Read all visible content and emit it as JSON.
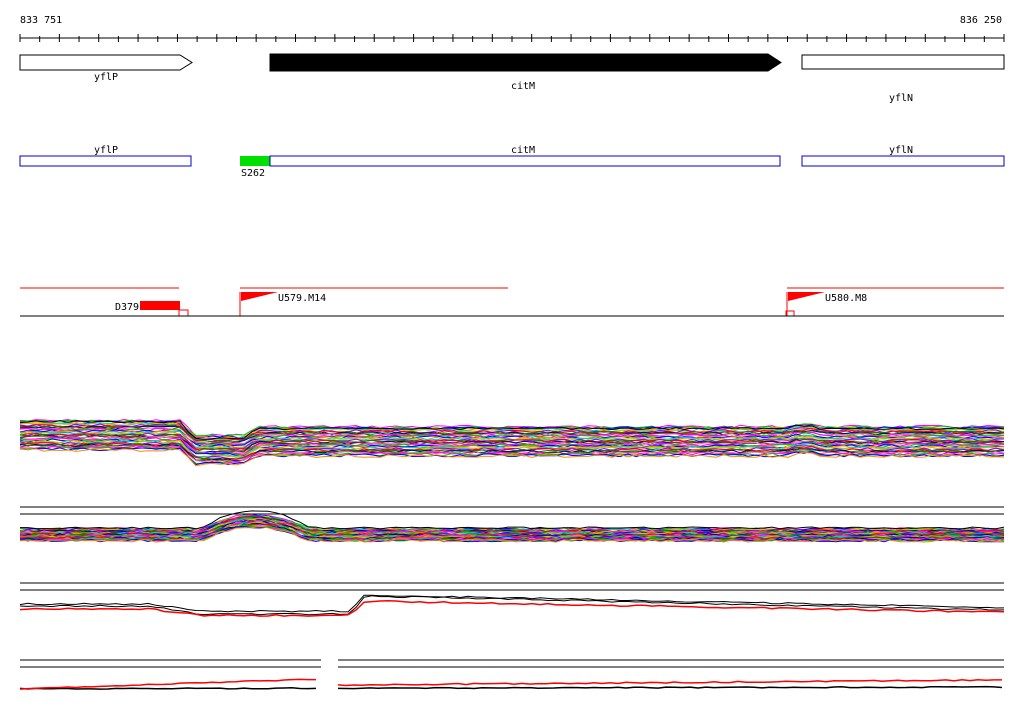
{
  "ruler": {
    "start_label": "833 751",
    "end_label": "836 250"
  },
  "genes": [
    {
      "id": "gene-yflp",
      "label": "yflP",
      "strand": "+",
      "filled": false
    },
    {
      "id": "gene-citm",
      "label": "citM",
      "strand": "+",
      "filled": true
    },
    {
      "id": "gene-yfln",
      "label": "yflN",
      "strand": "",
      "filled": false
    }
  ],
  "cds_boxes": [
    {
      "id": "cds-yflp",
      "label": "yflP"
    },
    {
      "id": "cds-citm",
      "label": "citM"
    },
    {
      "id": "cds-yfln",
      "label": "yflN"
    }
  ],
  "features": {
    "s262": {
      "label": "S262",
      "color": "#00e000"
    },
    "d379": {
      "label": "D379",
      "color": "#ff0000"
    },
    "u579": {
      "label": "U579.M14",
      "color": "#ff0000"
    },
    "u580": {
      "label": "U580.M8",
      "color": "#ff0000"
    }
  },
  "colors": {
    "cds_outline": "#0000cc",
    "feature_red": "#ff0000",
    "trace_palette": [
      "#ff00ff",
      "#00cc00",
      "#0000ff",
      "#ff8800",
      "#00cccc",
      "#cccc00",
      "#8800ff",
      "#ff0000",
      "#008800",
      "#000088",
      "#884400",
      "#ff66cc"
    ]
  }
}
